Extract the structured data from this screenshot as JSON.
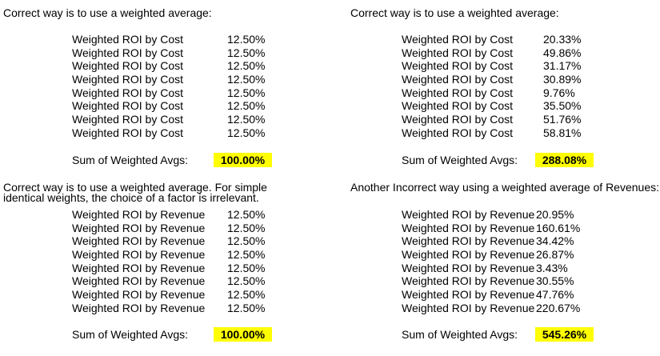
{
  "highlight_color": "#ffff00",
  "panels": [
    {
      "title_lines": [
        "Correct way is to use a weighted average:"
      ],
      "rows": [
        {
          "label": "Weighted ROI by Cost",
          "value": "12.50%"
        },
        {
          "label": "Weighted ROI by Cost",
          "value": "12.50%"
        },
        {
          "label": "Weighted ROI by Cost",
          "value": "12.50%"
        },
        {
          "label": "Weighted ROI by Cost",
          "value": "12.50%"
        },
        {
          "label": "Weighted ROI by Cost",
          "value": "12.50%"
        },
        {
          "label": "Weighted ROI by Cost",
          "value": "12.50%"
        },
        {
          "label": "Weighted ROI by Cost",
          "value": "12.50%"
        },
        {
          "label": "Weighted ROI by Cost",
          "value": "12.50%"
        }
      ],
      "sum_label": "Sum of Weighted Avgs:",
      "sum_value": "100.00%"
    },
    {
      "title_lines": [
        "Correct way is to use a weighted average:"
      ],
      "rows": [
        {
          "label": "Weighted ROI by Cost",
          "value": "20.33%"
        },
        {
          "label": "Weighted ROI by Cost",
          "value": "49.86%"
        },
        {
          "label": "Weighted ROI by Cost",
          "value": "31.17%"
        },
        {
          "label": "Weighted ROI by Cost",
          "value": "30.89%"
        },
        {
          "label": "Weighted ROI by Cost",
          "value": "9.76%"
        },
        {
          "label": "Weighted ROI by Cost",
          "value": "35.50%"
        },
        {
          "label": "Weighted ROI by Cost",
          "value": "51.76%"
        },
        {
          "label": "Weighted ROI by Cost",
          "value": "58.81%"
        }
      ],
      "sum_label": "Sum of Weighted Avgs:",
      "sum_value": "288.08%"
    },
    {
      "title_lines": [
        "Correct way is to use a weighted average. For simple",
        "identical weights, the choice of a factor is irrelevant."
      ],
      "rows": [
        {
          "label": "Weighted ROI by Revenue",
          "value": "12.50%"
        },
        {
          "label": "Weighted ROI by Revenue",
          "value": "12.50%"
        },
        {
          "label": "Weighted ROI by Revenue",
          "value": "12.50%"
        },
        {
          "label": "Weighted ROI by Revenue",
          "value": "12.50%"
        },
        {
          "label": "Weighted ROI by Revenue",
          "value": "12.50%"
        },
        {
          "label": "Weighted ROI by Revenue",
          "value": "12.50%"
        },
        {
          "label": "Weighted ROI by Revenue",
          "value": "12.50%"
        },
        {
          "label": "Weighted ROI by Revenue",
          "value": "12.50%"
        }
      ],
      "sum_label": "Sum of Weighted Avgs:",
      "sum_value": "100.00%"
    },
    {
      "title_lines": [
        "Another Incorrect way using a weighted average of Revenues:"
      ],
      "rows": [
        {
          "label": "Weighted ROI by Revenue",
          "value": "20.95%"
        },
        {
          "label": "Weighted ROI by Revenue",
          "value": "160.61%"
        },
        {
          "label": "Weighted ROI by Revenue",
          "value": "34.42%"
        },
        {
          "label": "Weighted ROI by Revenue",
          "value": "26.87%"
        },
        {
          "label": "Weighted ROI by Revenue",
          "value": "3.43%"
        },
        {
          "label": "Weighted ROI by Revenue",
          "value": "30.55%"
        },
        {
          "label": "Weighted ROI by Revenue",
          "value": "47.76%"
        },
        {
          "label": "Weighted ROI by Revenue",
          "value": "220.67%"
        }
      ],
      "sum_label": "Sum of Weighted Avgs:",
      "sum_value": "545.26%"
    }
  ]
}
